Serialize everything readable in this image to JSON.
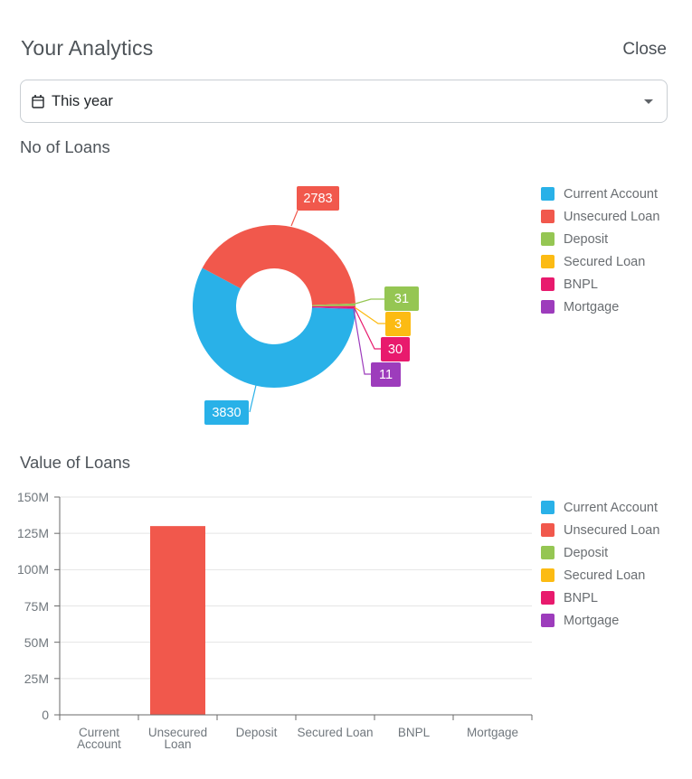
{
  "header": {
    "title": "Your Analytics",
    "close_label": "Close"
  },
  "filter": {
    "value": "This year",
    "icon": "calendar-icon"
  },
  "sections": {
    "loans_count": "No of Loans",
    "loans_value": "Value of Loans"
  },
  "colors": {
    "current_account": "#29B1E8",
    "unsecured_loan": "#F1584C",
    "deposit": "#95C653",
    "secured_loan": "#FCBB13",
    "bnpl": "#E81A6D",
    "mortgage": "#9D3CBC",
    "axis": "#6a6a6a",
    "gridline": "#e5e5e5",
    "legend_text": "#6a6e72"
  },
  "legend": [
    {
      "label": "Current Account",
      "color": "#29B1E8"
    },
    {
      "label": "Unsecured Loan",
      "color": "#F1584C"
    },
    {
      "label": "Deposit",
      "color": "#95C653"
    },
    {
      "label": "Secured Loan",
      "color": "#FCBB13"
    },
    {
      "label": "BNPL",
      "color": "#E81A6D"
    },
    {
      "label": "Mortgage",
      "color": "#9D3CBC"
    }
  ],
  "chart_data": [
    {
      "type": "pie",
      "subtype": "donut",
      "title": "No of Loans",
      "categories": [
        "Current Account",
        "Unsecured Loan",
        "Deposit",
        "Secured Loan",
        "BNPL",
        "Mortgage"
      ],
      "values": [
        3830,
        2783,
        31,
        3,
        30,
        11
      ],
      "colors": [
        "#29B1E8",
        "#F1584C",
        "#95C653",
        "#FCBB13",
        "#E81A6D",
        "#9D3CBC"
      ],
      "data_labels": [
        "3830",
        "2783",
        "31",
        "3",
        "30",
        "11"
      ],
      "legend_position": "right"
    },
    {
      "type": "bar",
      "title": "Value of Loans",
      "categories": [
        "Current Account",
        "Unsecured Loan",
        "Deposit",
        "Secured Loan",
        "BNPL",
        "Mortgage"
      ],
      "values_millions": [
        0,
        130,
        0,
        0,
        0,
        0
      ],
      "unit": "M",
      "ylim_millions": [
        0,
        150
      ],
      "ytick_interval_millions": 25,
      "ytick_labels_top_down": [
        "150M",
        "125M",
        "100M",
        "75M",
        "50M",
        "25M",
        "0"
      ],
      "colors": [
        "#29B1E8",
        "#F1584C",
        "#95C653",
        "#FCBB13",
        "#E81A6D",
        "#9D3CBC"
      ],
      "grid": true,
      "legend_position": "right"
    }
  ]
}
